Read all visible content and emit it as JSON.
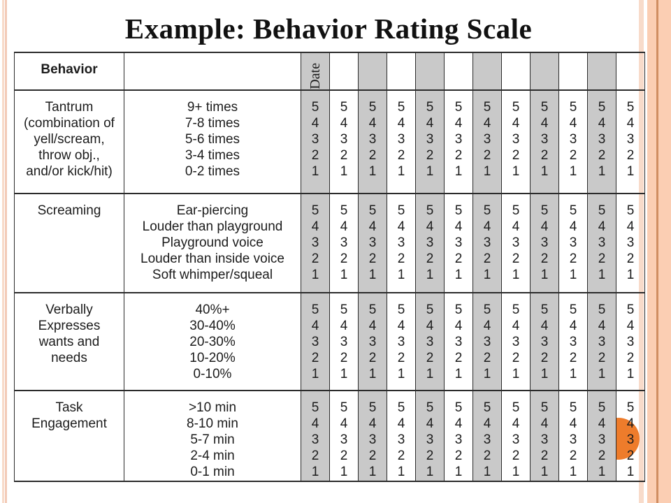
{
  "title": "Example: Behavior Rating Scale",
  "colors": {
    "shaded_column": "#c9c9c9",
    "circle_orange": "#ee7c2b",
    "border_stripe_light": "#f8dbca",
    "border_stripe_salmon": "#fbceb3",
    "border_stripe_dark": "#d08e62",
    "table_border": "#2b2b2b"
  },
  "decorations": {
    "orange_circle": "decorative half-visible circle at right edge"
  },
  "table": {
    "behavior_header": "Behavior",
    "date_header": "Date",
    "num_rating_columns": 12,
    "shaded_columns": [
      0,
      2,
      4,
      6,
      8,
      10
    ],
    "rating_scale_text": "5\n4\n3\n2\n1",
    "rows": [
      {
        "behavior": "Tantrum\n(combination of\nyell/scream,\nthrow obj.,\nand/or kick/hit)",
        "scale": "9+ times\n7-8 times\n5-6 times\n3-4 times\n0-2 times"
      },
      {
        "behavior": "Screaming",
        "scale": "Ear-piercing\nLouder than playground\nPlayground voice\nLouder than inside voice\nSoft whimper/squeal"
      },
      {
        "behavior": "Verbally\nExpresses\nwants and\nneeds",
        "scale": "40%+\n30-40%\n20-30%\n10-20%\n0-10%"
      },
      {
        "behavior": "Task\nEngagement",
        "scale": ">10 min\n8-10 min\n5-7 min\n2-4 min\n0-1 min"
      }
    ]
  }
}
